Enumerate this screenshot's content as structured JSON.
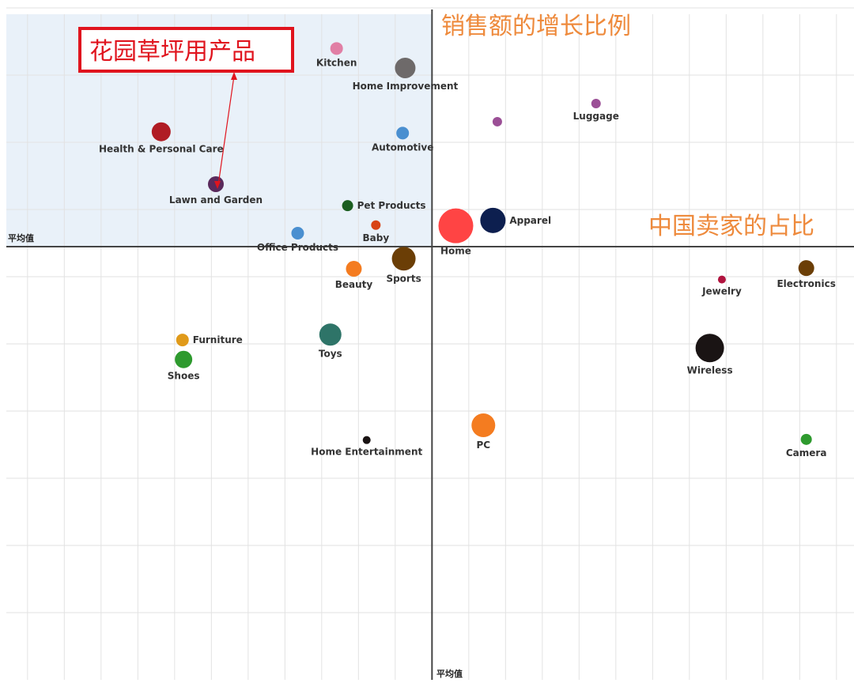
{
  "chart_data": {
    "type": "scatter",
    "subtype": "bubble-quadrant",
    "units_note": "",
    "xlabel": "中国卖家的占比",
    "ylabel": "销售额的增长比例",
    "x_reference_label": "平均值",
    "y_reference_label": "平均值",
    "grid": true,
    "highlighted_quadrant": "top-left",
    "highlight_color": "#e9f1f9",
    "title_color": "#ee8a3c",
    "annotation": {
      "text": "花园草坪用产品",
      "target": "Lawn and Garden",
      "color": "#e0141e"
    },
    "xlim": [
      -11.6,
      11.5
    ],
    "ylim": [
      -6.45,
      3.46
    ],
    "points": [
      {
        "name": "Kitchen",
        "x": -2.6,
        "y": 2.95,
        "size": 8,
        "color": "#e17fa5",
        "label_pos": "below"
      },
      {
        "name": "Home Improvement",
        "x": -0.73,
        "y": 2.66,
        "size": 13,
        "color": "#6e6a6a",
        "label_pos": "below"
      },
      {
        "name": "Health & Personal Care",
        "x": -7.38,
        "y": 1.71,
        "size": 12,
        "color": "#b01c24",
        "label_pos": "below"
      },
      {
        "name": "Automotive",
        "x": -0.8,
        "y": 1.69,
        "size": 8,
        "color": "#4a8fd0",
        "label_pos": "below"
      },
      {
        "name": "Lawn and Garden",
        "x": -5.89,
        "y": 0.93,
        "size": 10,
        "color": "#5a2a5c",
        "label_pos": "below"
      },
      {
        "name": "Pet Products",
        "x": -2.3,
        "y": 0.61,
        "size": 7,
        "color": "#1b5e20",
        "label_pos": "right"
      },
      {
        "name": "Baby",
        "x": -1.53,
        "y": 0.32,
        "size": 6,
        "color": "#d84315",
        "label_pos": "below"
      },
      {
        "name": "Office Products",
        "x": -3.66,
        "y": 0.2,
        "size": 8,
        "color": "#4a8fd0",
        "label_pos": "below"
      },
      {
        "name": "",
        "x": 1.78,
        "y": 1.86,
        "size": 6,
        "color": "#9b4f96",
        "label_pos": "none"
      },
      {
        "name": "Luggage",
        "x": 4.47,
        "y": 2.13,
        "size": 6,
        "color": "#9b4f96",
        "label_pos": "below"
      },
      {
        "name": "Home",
        "x": 0.65,
        "y": 0.31,
        "size": 22,
        "color": "#ff4444",
        "label_pos": "below"
      },
      {
        "name": "Apparel",
        "x": 1.66,
        "y": 0.39,
        "size": 16,
        "color": "#0d1f4f",
        "label_pos": "right"
      },
      {
        "name": "Sports",
        "x": -0.77,
        "y": -0.18,
        "size": 15,
        "color": "#6b3e06",
        "label_pos": "below"
      },
      {
        "name": "Beauty",
        "x": -2.13,
        "y": -0.33,
        "size": 10,
        "color": "#f47c20",
        "label_pos": "below"
      },
      {
        "name": "Electronics",
        "x": 10.2,
        "y": -0.32,
        "size": 10,
        "color": "#6b3e06",
        "label_pos": "below"
      },
      {
        "name": "Jewelry",
        "x": 7.9,
        "y": -0.49,
        "size": 5,
        "color": "#b0133e",
        "label_pos": "below"
      },
      {
        "name": "Toys",
        "x": -2.77,
        "y": -1.31,
        "size": 14,
        "color": "#2e7468",
        "label_pos": "below"
      },
      {
        "name": "Furniture",
        "x": -6.8,
        "y": -1.39,
        "size": 8,
        "color": "#e09a1a",
        "label_pos": "right"
      },
      {
        "name": "Shoes",
        "x": -6.77,
        "y": -1.68,
        "size": 11,
        "color": "#2e9a2e",
        "label_pos": "below"
      },
      {
        "name": "Wireless",
        "x": 7.57,
        "y": -1.51,
        "size": 18,
        "color": "#1a1414",
        "label_pos": "below"
      },
      {
        "name": "PC",
        "x": 1.4,
        "y": -2.66,
        "size": 15,
        "color": "#f47c20",
        "label_pos": "below"
      },
      {
        "name": "Home Entertainment",
        "x": -1.78,
        "y": -2.88,
        "size": 5,
        "color": "#1a1414",
        "label_pos": "below"
      },
      {
        "name": "Camera",
        "x": 10.2,
        "y": -2.87,
        "size": 7,
        "color": "#2e9a2e",
        "label_pos": "below"
      }
    ]
  }
}
